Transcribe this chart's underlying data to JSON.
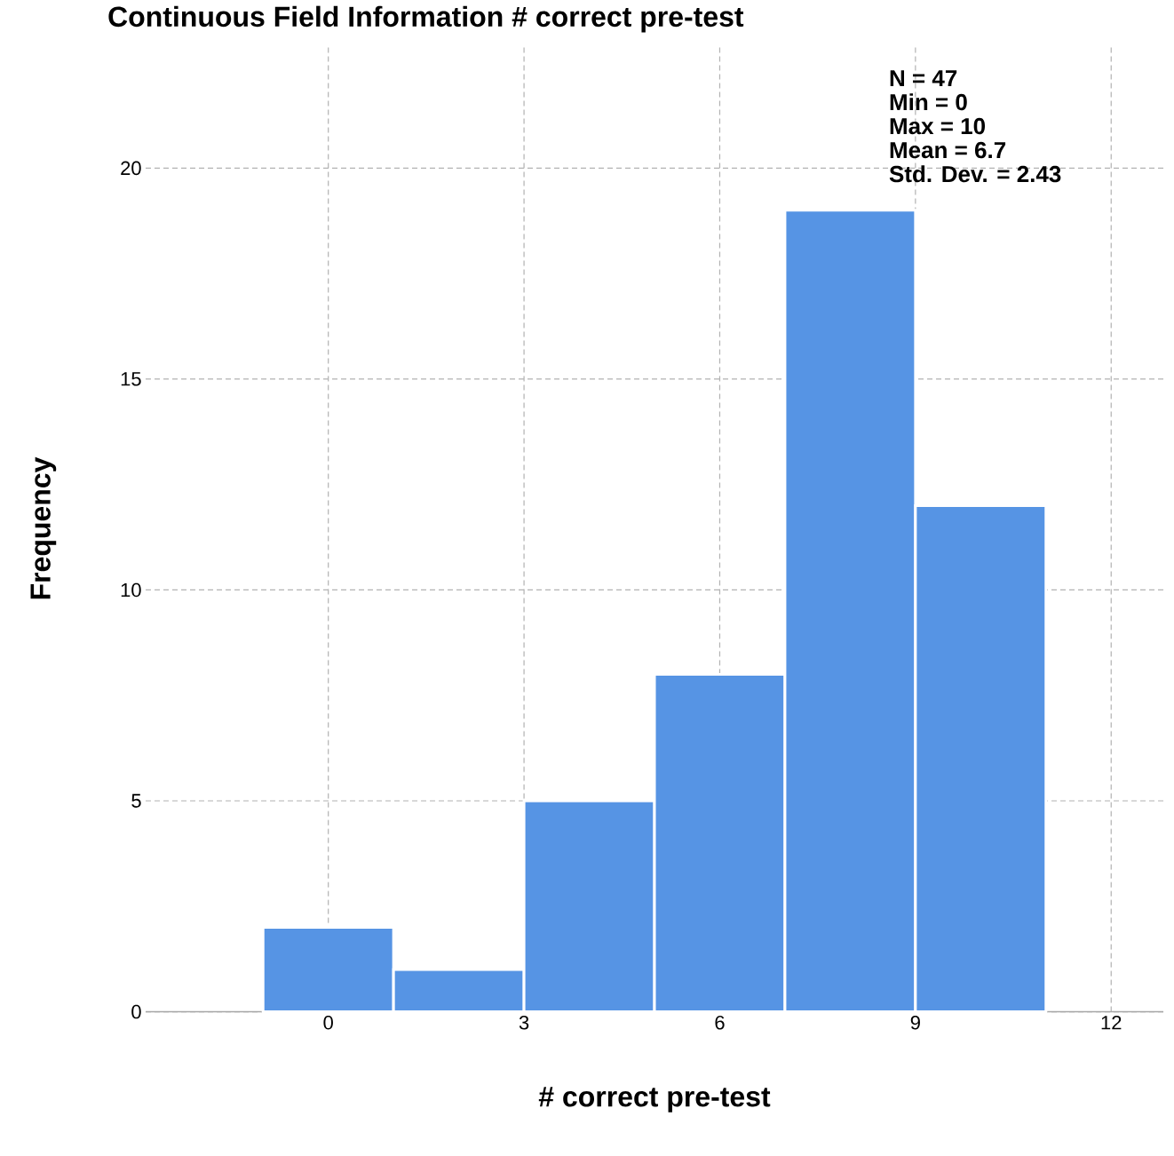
{
  "chart_data": {
    "type": "histogram",
    "title": "Continuous Field Information # correct pre-test",
    "xlabel": "# correct pre-test",
    "ylabel": "Frequency",
    "bins": [
      -1,
      1,
      3,
      5,
      7,
      9,
      11
    ],
    "values": [
      2,
      1,
      5,
      8,
      19,
      12
    ],
    "color": "#5694e4",
    "xlim": [
      -2.8,
      12.8
    ],
    "ylim": [
      0,
      22.9
    ],
    "xticks": [
      0,
      3,
      6,
      9,
      12
    ],
    "yticks": [
      0,
      5,
      10,
      15,
      20
    ],
    "grid": true,
    "annotations": [
      "N = 47",
      "Min = 0",
      "Max = 10",
      "Mean = 6.7",
      "Std. Dev. = 2.43"
    ]
  }
}
